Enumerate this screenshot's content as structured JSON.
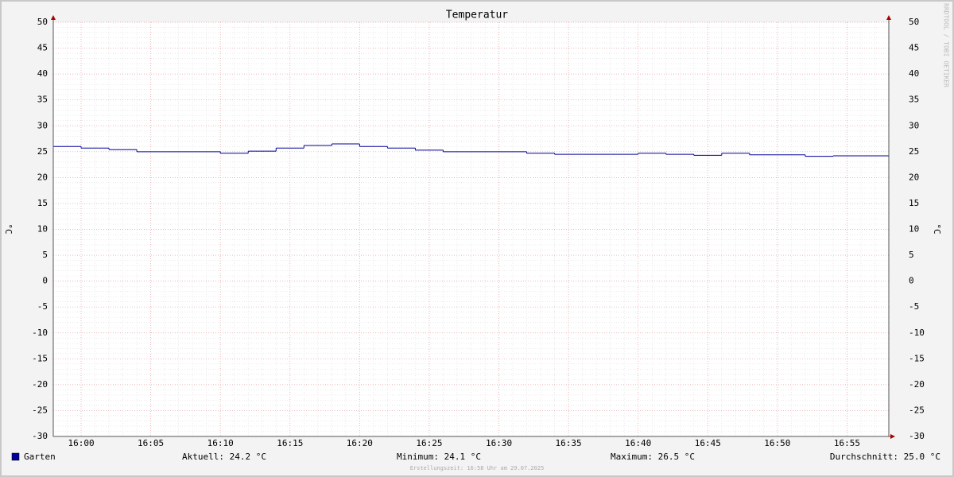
{
  "chart_data": {
    "type": "step",
    "title": "Temperatur",
    "y_label": "°C",
    "y2_label": "°C",
    "watermark": "RRDTOOL / TOBI OETIKER",
    "footer": "Erstellungszeit: 16:58 Uhr am 29.07.2025",
    "x": [
      "15:58",
      "16:00",
      "16:02",
      "16:04",
      "16:06",
      "16:08",
      "16:10",
      "16:12",
      "16:14",
      "16:16",
      "16:18",
      "16:20",
      "16:22",
      "16:24",
      "16:26",
      "16:28",
      "16:30",
      "16:32",
      "16:34",
      "16:36",
      "16:38",
      "16:40",
      "16:42",
      "16:44",
      "16:46",
      "16:48",
      "16:50",
      "16:52",
      "16:54",
      "16:56"
    ],
    "xlim": [
      "15:58",
      "16:58"
    ],
    "xticks": [
      "16:00",
      "16:05",
      "16:10",
      "16:15",
      "16:20",
      "16:25",
      "16:30",
      "16:35",
      "16:40",
      "16:45",
      "16:50",
      "16:55"
    ],
    "series": [
      {
        "name": "Garten",
        "color": "#000099",
        "values": [
          26.0,
          25.7,
          25.4,
          25.0,
          25.0,
          25.0,
          24.7,
          25.1,
          25.7,
          26.2,
          26.5,
          26.0,
          25.7,
          25.3,
          25.0,
          25.0,
          25.0,
          24.7,
          24.5,
          24.5,
          24.5,
          24.7,
          24.5,
          24.3,
          24.7,
          24.4,
          24.4,
          24.1,
          24.2,
          24.2
        ]
      }
    ],
    "ylim": [
      -30,
      50
    ],
    "yticks": [
      -30,
      -25,
      -20,
      -15,
      -10,
      -5,
      0,
      5,
      10,
      15,
      20,
      25,
      30,
      35,
      40,
      45,
      50
    ],
    "grid": true,
    "minor_grid": {
      "y": 1,
      "x_minutes": 1
    },
    "stats": [
      "Aktuell: 24.2 °C",
      "Minimum: 24.1 °C",
      "Maximum: 26.5 °C",
      "Durchschnitt: 25.0 °C"
    ]
  }
}
